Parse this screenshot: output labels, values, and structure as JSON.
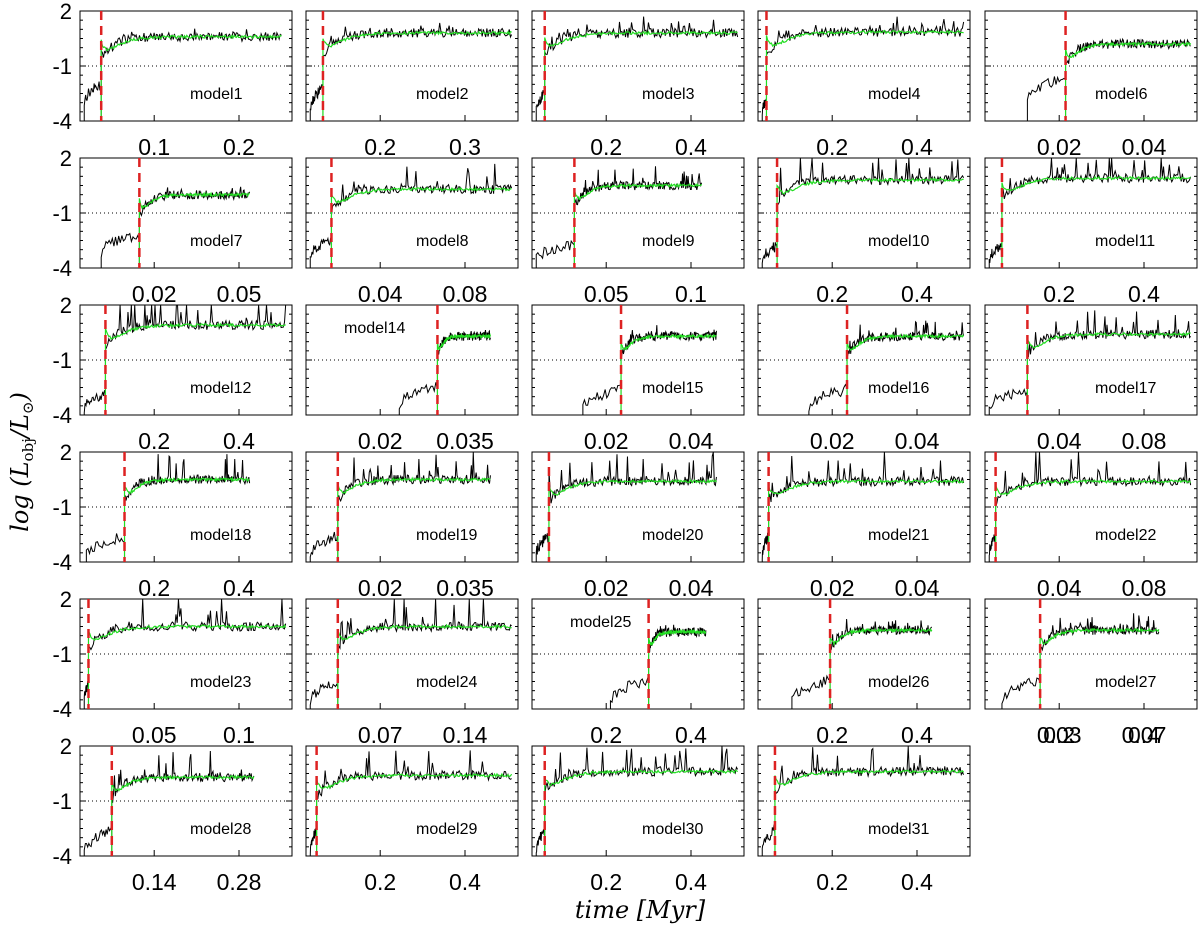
{
  "figure": {
    "ylabel": "log (L_obj / L_⊙)",
    "ylabel_parts": {
      "prefix": "log (",
      "L1": "L",
      "sub1": "obj",
      "slash": "/",
      "L2": "L",
      "sub2": "⊙",
      "suffix": ")"
    },
    "xlabel": "time [Myr]",
    "colors": {
      "observed": "#000000",
      "smoothed": "#22dd22",
      "transition": "#dd2222",
      "reference": "#000000"
    }
  },
  "chart_data": [
    {
      "type": "line",
      "model": "model1",
      "ylim": [
        -4,
        2
      ],
      "yticks": [
        "2",
        "-1",
        "-4"
      ],
      "xticks": [
        "0.1",
        "0.2"
      ],
      "transition": 0.1,
      "end": 0.95,
      "pre": [
        -3.0,
        -2.0
      ],
      "post": 0.6,
      "spike": 0.5,
      "label_pos": "bottom"
    },
    {
      "type": "line",
      "model": "model2",
      "ylim": [
        -4,
        2
      ],
      "yticks": [
        "2",
        "-1",
        "-4"
      ],
      "xticks": [
        "0.2",
        "0.3"
      ],
      "transition": 0.08,
      "end": 0.97,
      "pre": [
        -3.4,
        -2.2
      ],
      "post": 0.8,
      "spike": 0.7,
      "label_pos": "bottom"
    },
    {
      "type": "line",
      "model": "model3",
      "ylim": [
        -4,
        2
      ],
      "yticks": [
        "2",
        "-1",
        "-4"
      ],
      "xticks": [
        "0.2",
        "0.4"
      ],
      "transition": 0.06,
      "end": 0.97,
      "pre": [
        -3.5,
        -2.5
      ],
      "post": 0.8,
      "spike": 0.7,
      "label_pos": "bottom"
    },
    {
      "type": "line",
      "model": "model4",
      "ylim": [
        -4,
        2
      ],
      "yticks": [
        "2",
        "-1",
        "-4"
      ],
      "xticks": [
        "0.2",
        "0.4"
      ],
      "transition": 0.04,
      "end": 0.97,
      "pre": [
        -3.6,
        -2.8
      ],
      "post": 0.85,
      "spike": 0.7,
      "label_pos": "bottom"
    },
    {
      "type": "line",
      "model": "model6",
      "ylim": [
        -4,
        2
      ],
      "yticks": [
        "2",
        "-1",
        "-4"
      ],
      "xticks": [
        "0.02",
        "0.04"
      ],
      "transition": 0.38,
      "end": 0.97,
      "pre": [
        -3.0,
        -1.6
      ],
      "post": 0.2,
      "spike": 0.2,
      "label_pos": "bottom"
    },
    {
      "type": "line",
      "model": "model7",
      "ylim": [
        -4,
        2
      ],
      "yticks": [
        "2",
        "-1",
        "-4"
      ],
      "xticks": [
        "0.02",
        "0.05"
      ],
      "transition": 0.28,
      "end": 0.8,
      "pre": [
        -3.2,
        -2.2
      ],
      "post": 0.0,
      "spike": 0.3,
      "label_pos": "bottom"
    },
    {
      "type": "line",
      "model": "model8",
      "ylim": [
        -4,
        2
      ],
      "yticks": [
        "2",
        "-1",
        "-4"
      ],
      "xticks": [
        "0.04",
        "0.08"
      ],
      "transition": 0.12,
      "end": 0.97,
      "pre": [
        -3.4,
        -2.4
      ],
      "post": 0.3,
      "spike": 1.2,
      "label_pos": "bottom"
    },
    {
      "type": "line",
      "model": "model9",
      "ylim": [
        -4,
        2
      ],
      "yticks": [
        "2",
        "-1",
        "-4"
      ],
      "xticks": [
        "0.05",
        "0.1"
      ],
      "transition": 0.2,
      "end": 0.8,
      "pre": [
        -3.5,
        -2.7
      ],
      "post": 0.5,
      "spike": 1.0,
      "label_pos": "bottom"
    },
    {
      "type": "line",
      "model": "model10",
      "ylim": [
        -4,
        2
      ],
      "yticks": [
        "2",
        "-1",
        "-4"
      ],
      "xticks": [
        "0.2",
        "0.4"
      ],
      "transition": 0.09,
      "end": 0.97,
      "pre": [
        -3.6,
        -2.8
      ],
      "post": 0.8,
      "spike": 1.8,
      "label_pos": "bottom"
    },
    {
      "type": "line",
      "model": "model11",
      "ylim": [
        -4,
        2
      ],
      "yticks": [
        "2",
        "-1",
        "-4"
      ],
      "xticks": [
        "0.2",
        "0.4"
      ],
      "transition": 0.08,
      "end": 0.97,
      "pre": [
        -3.6,
        -2.8
      ],
      "post": 0.9,
      "spike": 2.0,
      "label_pos": "bottom"
    },
    {
      "type": "line",
      "model": "model12",
      "ylim": [
        -4,
        2
      ],
      "yticks": [
        "2",
        "-1",
        "-4"
      ],
      "xticks": [
        "0.2",
        "0.4"
      ],
      "transition": 0.12,
      "end": 0.97,
      "pre": [
        -3.6,
        -2.8
      ],
      "post": 0.9,
      "spike": 2.2,
      "label_pos": "bottom"
    },
    {
      "type": "line",
      "model": "model14",
      "ylim": [
        -4,
        2
      ],
      "yticks": [
        "2",
        "-1",
        "-4"
      ],
      "xticks": [
        "0.02",
        "0.035"
      ],
      "transition": 0.62,
      "end": 0.87,
      "pre": [
        -3.6,
        -2.4
      ],
      "post": 0.3,
      "spike": 0.2,
      "label_pos": "top"
    },
    {
      "type": "line",
      "model": "model15",
      "ylim": [
        -4,
        2
      ],
      "yticks": [
        "2",
        "-1",
        "-4"
      ],
      "xticks": [
        "0.02",
        "0.04"
      ],
      "transition": 0.42,
      "end": 0.87,
      "pre": [
        -3.6,
        -2.6
      ],
      "post": 0.3,
      "spike": 0.4,
      "label_pos": "bottom"
    },
    {
      "type": "line",
      "model": "model16",
      "ylim": [
        -4,
        2
      ],
      "yticks": [
        "2",
        "-1",
        "-4"
      ],
      "xticks": [
        "0.02",
        "0.04"
      ],
      "transition": 0.42,
      "end": 0.97,
      "pre": [
        -3.6,
        -2.6
      ],
      "post": 0.3,
      "spike": 0.8,
      "label_pos": "bottom"
    },
    {
      "type": "line",
      "model": "model17",
      "ylim": [
        -4,
        2
      ],
      "yticks": [
        "2",
        "-1",
        "-4"
      ],
      "xticks": [
        "0.04",
        "0.08"
      ],
      "transition": 0.2,
      "end": 0.97,
      "pre": [
        -3.6,
        -2.6
      ],
      "post": 0.4,
      "spike": 1.2,
      "label_pos": "bottom"
    },
    {
      "type": "line",
      "model": "model18",
      "ylim": [
        -4,
        2
      ],
      "yticks": [
        "2",
        "-1",
        "-4"
      ],
      "xticks": [
        "0.2",
        "0.4"
      ],
      "transition": 0.21,
      "end": 0.8,
      "pre": [
        -3.6,
        -2.6
      ],
      "post": 0.5,
      "spike": 1.2,
      "label_pos": "bottom"
    },
    {
      "type": "line",
      "model": "model19",
      "ylim": [
        -4,
        2
      ],
      "yticks": [
        "2",
        "-1",
        "-4"
      ],
      "xticks": [
        "0.02",
        "0.035"
      ],
      "transition": 0.15,
      "end": 0.87,
      "pre": [
        -3.6,
        -2.6
      ],
      "post": 0.5,
      "spike": 1.4,
      "label_pos": "bottom"
    },
    {
      "type": "line",
      "model": "model20",
      "ylim": [
        -4,
        2
      ],
      "yticks": [
        "2",
        "-1",
        "-4"
      ],
      "xticks": [
        "0.02",
        "0.04"
      ],
      "transition": 0.08,
      "end": 0.87,
      "pre": [
        -3.6,
        -2.6
      ],
      "post": 0.4,
      "spike": 1.6,
      "label_pos": "bottom"
    },
    {
      "type": "line",
      "model": "model21",
      "ylim": [
        -4,
        2
      ],
      "yticks": [
        "2",
        "-1",
        "-4"
      ],
      "xticks": [
        "0.02",
        "0.04"
      ],
      "transition": 0.05,
      "end": 0.97,
      "pre": [
        -3.6,
        -2.6
      ],
      "post": 0.4,
      "spike": 1.8,
      "label_pos": "bottom"
    },
    {
      "type": "line",
      "model": "model22",
      "ylim": [
        -4,
        2
      ],
      "yticks": [
        "2",
        "-1",
        "-4"
      ],
      "xticks": [
        "0.04",
        "0.08"
      ],
      "transition": 0.05,
      "end": 0.97,
      "pre": [
        -3.6,
        -2.6
      ],
      "post": 0.4,
      "spike": 1.9,
      "label_pos": "bottom"
    },
    {
      "type": "line",
      "model": "model23",
      "ylim": [
        -4,
        2
      ],
      "yticks": [
        "2",
        "-1",
        "-4"
      ],
      "xticks": [
        "0.05",
        "0.1"
      ],
      "transition": 0.04,
      "end": 0.97,
      "pre": [
        -3.6,
        -2.6
      ],
      "post": 0.5,
      "spike": 2.0,
      "label_pos": "bottom"
    },
    {
      "type": "line",
      "model": "model24",
      "ylim": [
        -4,
        2
      ],
      "yticks": [
        "2",
        "-1",
        "-4"
      ],
      "xticks": [
        "0.07",
        "0.14"
      ],
      "transition": 0.15,
      "end": 0.97,
      "pre": [
        -3.6,
        -2.6
      ],
      "post": 0.5,
      "spike": 2.0,
      "label_pos": "bottom"
    },
    {
      "type": "line",
      "model": "model25",
      "ylim": [
        -4,
        2
      ],
      "yticks": [
        "2",
        "-1",
        "-4"
      ],
      "xticks": [
        "0.2",
        "0.4"
      ],
      "transition": 0.55,
      "end": 0.82,
      "pre": [
        -3.6,
        -2.4
      ],
      "post": 0.2,
      "spike": 0.2,
      "label_pos": "top"
    },
    {
      "type": "line",
      "model": "model26",
      "ylim": [
        -4,
        2
      ],
      "yticks": [
        "2",
        "-1",
        "-4"
      ],
      "xticks": [
        "0.2",
        "0.4"
      ],
      "transition": 0.34,
      "end": 0.82,
      "pre": [
        -3.6,
        -2.4
      ],
      "post": 0.3,
      "spike": 0.7,
      "label_pos": "bottom"
    },
    {
      "type": "line",
      "model": "model27",
      "ylim": [
        -4,
        2
      ],
      "yticks": [
        "2",
        "-1",
        "-4"
      ],
      "xticks": [
        "0.2",
        "0.4"
      ],
      "transition": 0.26,
      "end": 0.82,
      "pre": [
        -3.6,
        -2.4
      ],
      "post": 0.3,
      "spike": 0.8,
      "label_pos": "bottom"
    },
    {
      "type": "line",
      "model": "model28",
      "ylim": [
        -4,
        2
      ],
      "yticks": [
        "2",
        "-1",
        "-4"
      ],
      "xticks": [
        "0.14",
        "0.28"
      ],
      "transition": 0.15,
      "end": 0.82,
      "pre": [
        -3.8,
        -2.6
      ],
      "post": 0.3,
      "spike": 1.3,
      "label_pos": "bottom"
    },
    {
      "type": "line",
      "model": "model29",
      "ylim": [
        -4,
        2
      ],
      "yticks": [
        "2",
        "-1",
        "-4"
      ],
      "xticks": [
        "0.2",
        "0.4"
      ],
      "transition": 0.05,
      "end": 0.97,
      "pre": [
        -3.8,
        -2.6
      ],
      "post": 0.4,
      "spike": 1.5,
      "label_pos": "bottom"
    },
    {
      "type": "line",
      "model": "model30",
      "ylim": [
        -4,
        2
      ],
      "yticks": [
        "2",
        "-1",
        "-4"
      ],
      "xticks": [
        "0.2",
        "0.4"
      ],
      "transition": 0.06,
      "end": 0.97,
      "pre": [
        -3.8,
        -2.6
      ],
      "post": 0.6,
      "spike": 1.5,
      "label_pos": "bottom"
    },
    {
      "type": "line",
      "model": "model31",
      "ylim": [
        -4,
        2
      ],
      "yticks": [
        "2",
        "-1",
        "-4"
      ],
      "xticks": [
        "0.2",
        "0.4"
      ],
      "transition": 0.08,
      "end": 0.97,
      "pre": [
        -3.8,
        -2.6
      ],
      "post": 0.6,
      "spike": 1.5,
      "label_pos": "bottom"
    }
  ],
  "extra_tick_rows": [
    {
      "xticks": [
        "0.03",
        "0.07"
      ]
    }
  ]
}
